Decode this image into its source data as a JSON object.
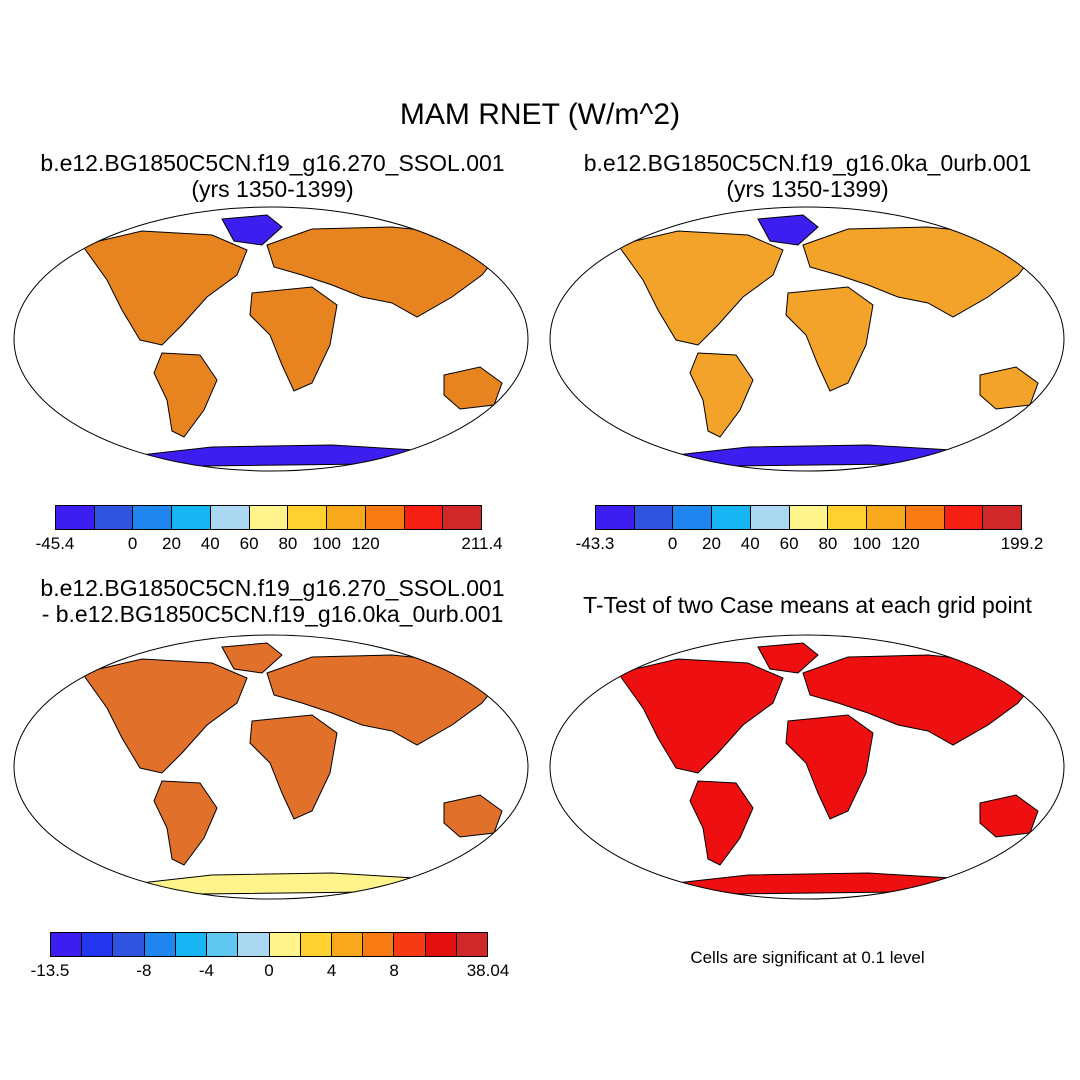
{
  "main_title": "MAM RNET (W/m^2)",
  "panels": [
    {
      "title1": "b.e12.BG1850C5CN.f19_g16.270_SSOL.001",
      "title2": "(yrs 1350-1399)",
      "fill": "#e8841f"
    },
    {
      "title1": "b.e12.BG1850C5CN.f19_g16.0ka_0urb.001",
      "title2": "(yrs 1350-1399)",
      "fill": "#f3a22a"
    },
    {
      "title1": "b.e12.BG1850C5CN.f19_g16.270_SSOL.001",
      "title2": "- b.e12.BG1850C5CN.f19_g16.0ka_0urb.001",
      "fill": "#e0702a"
    },
    {
      "title1": "",
      "title2": "T-Test of two Case means at each grid point",
      "fill": "#ee1010"
    }
  ],
  "colorbars": [
    {
      "colors": [
        "#3c1ff0",
        "#2f55e0",
        "#1f86f0",
        "#17b6f2",
        "#a9d8f0",
        "#fff38c",
        "#ffd130",
        "#f7a81c",
        "#f77a12",
        "#f61f14",
        "#d02828"
      ],
      "ticks": [
        "-45.4",
        "0",
        "20",
        "40",
        "60",
        "80",
        "100",
        "120",
        "211.4"
      ],
      "tick_index": [
        0,
        2,
        3,
        4,
        5,
        6,
        7,
        8,
        11
      ]
    },
    {
      "colors": [
        "#3c1ff0",
        "#2f55e0",
        "#1f86f0",
        "#17b6f2",
        "#a9d8f0",
        "#fff38c",
        "#ffd130",
        "#f7a81c",
        "#f77a12",
        "#f61f14",
        "#d02828"
      ],
      "ticks": [
        "-43.3",
        "0",
        "20",
        "40",
        "60",
        "80",
        "100",
        "120",
        "199.2"
      ],
      "tick_index": [
        0,
        2,
        3,
        4,
        5,
        6,
        7,
        8,
        11
      ]
    },
    {
      "colors": [
        "#3c1ff0",
        "#2436f0",
        "#2f55e0",
        "#1f86f0",
        "#17b6f2",
        "#60c8f0",
        "#a9d8f0",
        "#fff38c",
        "#ffd130",
        "#f7a81c",
        "#f77a12",
        "#f63a14",
        "#e31010",
        "#d02828"
      ],
      "ticks": [
        "-13.5",
        "-8",
        "-4",
        "0",
        "4",
        "8",
        "38.04"
      ],
      "tick_index": [
        0,
        3,
        5,
        7,
        9,
        11,
        14
      ]
    }
  ],
  "significance_note": "Cells are significant at 0.1 level"
}
